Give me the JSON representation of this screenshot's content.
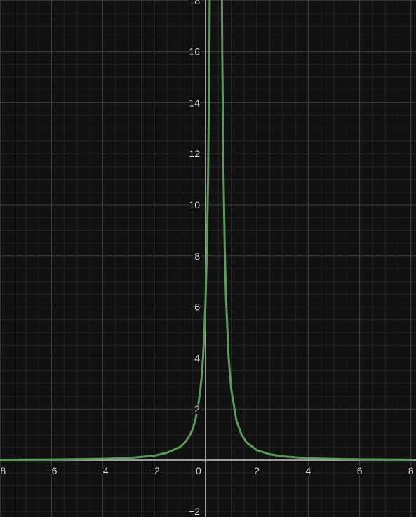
{
  "chart_data": {
    "type": "line",
    "title": "",
    "xlabel": "",
    "ylabel": "",
    "xlim": [
      -8,
      8
    ],
    "ylim": [
      -2,
      18
    ],
    "grid": true,
    "minor_grid": true,
    "x_ticks": [
      {
        "value": -8,
        "label": "−8"
      },
      {
        "value": -6,
        "label": "−6"
      },
      {
        "value": -4,
        "label": "−4"
      },
      {
        "value": -2,
        "label": "−2"
      },
      {
        "value": 0,
        "label": "0"
      },
      {
        "value": 2,
        "label": "2"
      },
      {
        "value": 4,
        "label": "4"
      },
      {
        "value": 6,
        "label": "6"
      },
      {
        "value": 8,
        "label": "8"
      }
    ],
    "y_ticks": [
      {
        "value": -2,
        "label": "−2"
      },
      {
        "value": 2,
        "label": "2"
      },
      {
        "value": 4,
        "label": "4"
      },
      {
        "value": 6,
        "label": "6"
      },
      {
        "value": 8,
        "label": "8"
      },
      {
        "value": 10,
        "label": "10"
      },
      {
        "value": 12,
        "label": "12"
      },
      {
        "value": 14,
        "label": "14"
      },
      {
        "value": 16,
        "label": "16"
      },
      {
        "value": 18,
        "label": "18"
      }
    ],
    "series": [
      {
        "color": "#5a9a5a",
        "asymptote_x": 0.4,
        "left_branch": {
          "x": [
            -8,
            -6,
            -4,
            -3,
            -2,
            -1.5,
            -1,
            -0.8,
            -0.6,
            -0.5,
            -0.4,
            -0.3,
            -0.2,
            -0.15,
            -0.1,
            -0.05,
            0,
            0.05,
            0.1,
            0.15,
            0.2,
            0.21
          ],
          "y": [
            0.014,
            0.024,
            0.052,
            0.087,
            0.174,
            0.292,
            0.51,
            0.69,
            1.0,
            1.23,
            1.56,
            2.04,
            2.78,
            3.31,
            4.0,
            4.94,
            6.25,
            8.16,
            11.1,
            16.0,
            25.0,
            27.7
          ]
        },
        "right_branch": {
          "x": [
            0.59,
            0.6,
            0.65,
            0.7,
            0.75,
            0.8,
            0.9,
            1.0,
            1.2,
            1.4,
            1.6,
            2,
            2.5,
            3,
            4,
            5,
            6,
            7,
            8
          ],
          "y": [
            27.7,
            25.0,
            16.0,
            11.1,
            8.16,
            6.25,
            4.0,
            2.78,
            1.56,
            1.0,
            0.69,
            0.39,
            0.23,
            0.15,
            0.077,
            0.047,
            0.032,
            0.023,
            0.017
          ]
        }
      }
    ]
  }
}
